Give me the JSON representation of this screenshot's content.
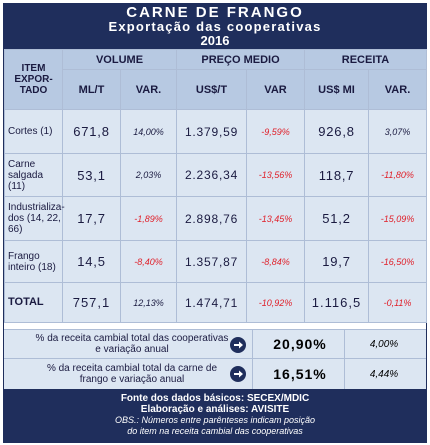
{
  "header": {
    "title": "CARNE DE FRANGO",
    "subtitle": "Exportação das cooperativas",
    "year": "2016"
  },
  "table": {
    "item_header": "ITEM EXPOR- TADO",
    "groups": {
      "volume": "VOLUME",
      "preco": "PREÇO MEDIO",
      "receita": "RECEITA"
    },
    "subheads": {
      "volume_unit": "ML/T",
      "volume_var": "VAR.",
      "preco_unit": "US$/T",
      "preco_var": "VAR",
      "receita_unit": "US$ MI",
      "receita_var": "VAR."
    },
    "rows": [
      {
        "label": "Cortes (1)",
        "volume": "671,8",
        "volume_var": "14,00%",
        "preco": "1.379,59",
        "preco_var": "-9,59%",
        "receita": "926,8",
        "receita_var": "3,07%"
      },
      {
        "label": "Carne salgada (11)",
        "volume": "53,1",
        "volume_var": "2,03%",
        "preco": "2.236,34",
        "preco_var": "-13,56%",
        "receita": "118,7",
        "receita_var": "-11,80%"
      },
      {
        "label": "Industrializa- dos (14, 22, 66)",
        "volume": "17,7",
        "volume_var": "-1,89%",
        "preco": "2.898,76",
        "preco_var": "-13,45%",
        "receita": "51,2",
        "receita_var": "-15,09%"
      },
      {
        "label": "Frango inteiro (18)",
        "volume": "14,5",
        "volume_var": "-8,40%",
        "preco": "1.357,87",
        "preco_var": "-8,84%",
        "receita": "19,7",
        "receita_var": "-16,50%"
      }
    ],
    "total": {
      "label": "TOTAL",
      "volume": "757,1",
      "volume_var": "12,13%",
      "preco": "1.474,71",
      "preco_var": "-10,92%",
      "receita": "1.116,5",
      "receita_var": "-0,11%"
    }
  },
  "notes": [
    {
      "text": "% da receita cambial total das cooperativas e variação anual",
      "value": "20,90%",
      "var": "4,00%"
    },
    {
      "text": "% da receita cambial total da carne de frango e variação anual",
      "value": "16,51%",
      "var": "4,44%"
    }
  ],
  "footer": {
    "source": "Fonte dos dados básicos: SECEX/MDIC",
    "author": "Elaboração e análises: AVISITE",
    "obs1": "OBS.: Números entre parênteses indicam posição",
    "obs2": "do item na receita cambial das cooperativas"
  },
  "colors": {
    "header_bg": "#1f2e5c",
    "cell_bg": "#dce6f2",
    "head_bg": "#b7c9e2",
    "negative": "#e0202a"
  }
}
